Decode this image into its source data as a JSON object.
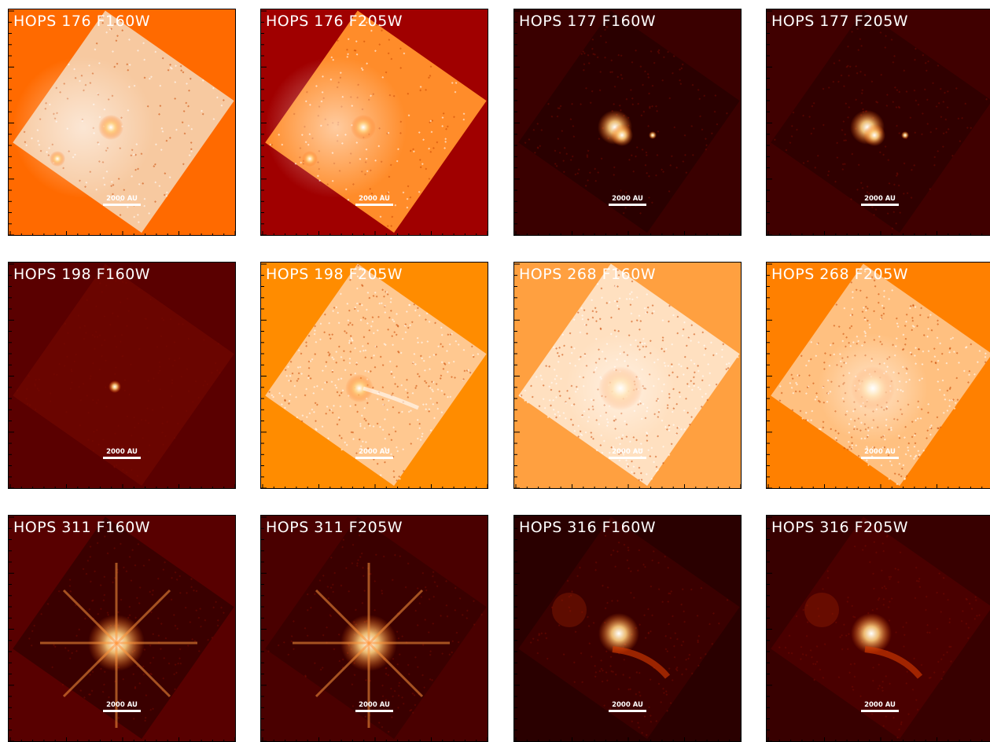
{
  "scale_label": "2000 AU",
  "panels": [
    {
      "title": "HOPS 176 F160W",
      "bg": "#ff6a00",
      "tile": "#f7c9a0",
      "style": "diffuse",
      "sources": "double"
    },
    {
      "title": "HOPS 176 F205W",
      "bg": "#a00000",
      "tile": "#ff8c2a",
      "style": "diffuse",
      "sources": "double"
    },
    {
      "title": "HOPS 177 F160W",
      "bg": "#3a0000",
      "tile": "#2a0000",
      "style": "dark",
      "sources": "knot"
    },
    {
      "title": "HOPS 177 F205W",
      "bg": "#400000",
      "tile": "#300000",
      "style": "dark",
      "sources": "knot"
    },
    {
      "title": "HOPS 198 F160W",
      "bg": "#5a0000",
      "tile": "#6a0500",
      "style": "dark",
      "sources": "faint"
    },
    {
      "title": "HOPS 198 F205W",
      "bg": "#ff8c00",
      "tile": "#ffc890",
      "style": "noisy",
      "sources": "jet"
    },
    {
      "title": "HOPS 268 F160W",
      "bg": "#ffa040",
      "tile": "#ffe0c0",
      "style": "noisy",
      "sources": "bright"
    },
    {
      "title": "HOPS 268 F205W",
      "bg": "#ff8000",
      "tile": "#ffc080",
      "style": "noisy",
      "sources": "bright"
    },
    {
      "title": "HOPS 311 F160W",
      "bg": "#580000",
      "tile": "#3a0000",
      "style": "dark",
      "sources": "spikes"
    },
    {
      "title": "HOPS 311 F205W",
      "bg": "#4a0000",
      "tile": "#3a0000",
      "style": "dark",
      "sources": "spikes"
    },
    {
      "title": "HOPS 316 F160W",
      "bg": "#2a0000",
      "tile": "#3a0000",
      "style": "dark",
      "sources": "arc"
    },
    {
      "title": "HOPS 316 F205W",
      "bg": "#380000",
      "tile": "#4a0000",
      "style": "dark",
      "sources": "arc"
    }
  ]
}
